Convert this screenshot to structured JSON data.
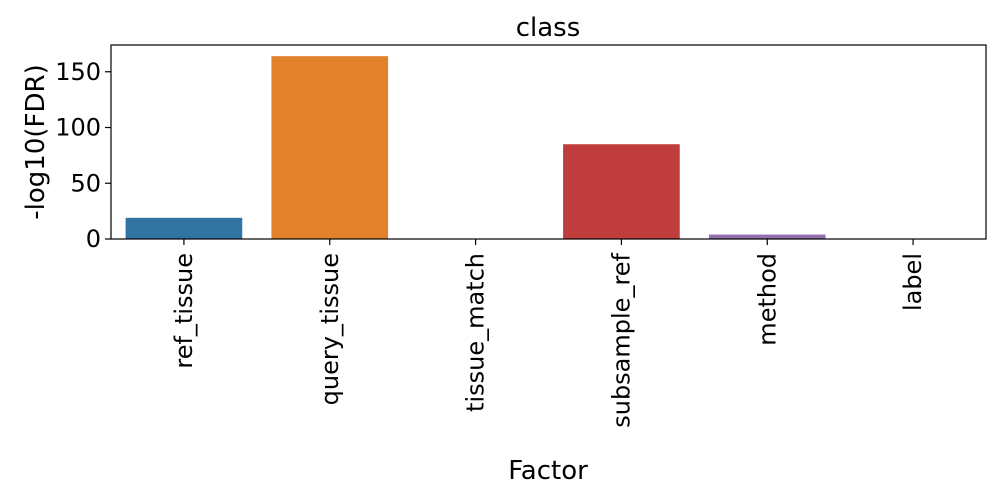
{
  "chart_data": {
    "type": "bar",
    "title": "class",
    "xlabel": "Factor",
    "ylabel": "-log10(FDR)",
    "categories": [
      "ref_tissue",
      "query_tissue",
      "tissue_match",
      "subsample_ref",
      "method",
      "label"
    ],
    "values": [
      19,
      164,
      0,
      85,
      4,
      0
    ],
    "colors": [
      "#3274a1",
      "#e1812c",
      "#3a923a",
      "#c03d3e",
      "#9372b2",
      "#845b53"
    ],
    "ylim": [
      0,
      174
    ],
    "yticks": [
      0,
      50,
      100,
      150
    ],
    "grid": false,
    "legend": "none"
  }
}
